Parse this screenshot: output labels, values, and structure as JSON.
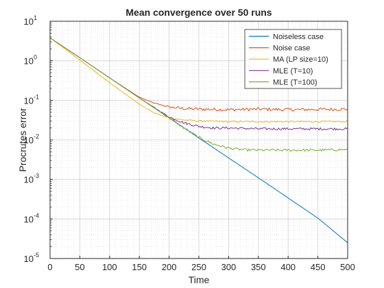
{
  "chart_data": {
    "type": "line",
    "title": "Mean convergence over 50 runs",
    "xlabel": "Time",
    "ylabel": "Procrutes error",
    "xlim": [
      0,
      500
    ],
    "ylim": [
      1e-05,
      10
    ],
    "yscale": "log",
    "grid": true,
    "minor_grid": true,
    "legend_position": "top-right",
    "x_ticks": [
      0,
      50,
      100,
      150,
      200,
      250,
      300,
      350,
      400,
      450,
      500
    ],
    "x_tick_labels": [
      "0",
      "50",
      "100",
      "150",
      "200",
      "250",
      "300",
      "350",
      "400",
      "450",
      "500"
    ],
    "y_ticks": [
      1e-05,
      0.0001,
      0.001,
      0.01,
      0.1,
      1,
      10
    ],
    "y_tick_labels": [
      {
        "base": "10",
        "exp": "-5"
      },
      {
        "base": "10",
        "exp": "-4"
      },
      {
        "base": "10",
        "exp": "-3"
      },
      {
        "base": "10",
        "exp": "-2"
      },
      {
        "base": "10",
        "exp": "-1"
      },
      {
        "base": "10",
        "exp": "0"
      },
      {
        "base": "10",
        "exp": "1"
      }
    ],
    "series": [
      {
        "name": "Noiseless case",
        "color": "#0072bd",
        "x": [
          0,
          50,
          100,
          150,
          200,
          250,
          300,
          350,
          400,
          450,
          500
        ],
        "y": [
          3.8,
          1.2,
          0.37,
          0.115,
          0.036,
          0.0112,
          0.0035,
          0.0011,
          0.00034,
          0.000105,
          2.5e-05
        ]
      },
      {
        "name": "Noise case",
        "color": "#d95319",
        "x": [
          0,
          50,
          100,
          150,
          175,
          200,
          225,
          250,
          300,
          350,
          400,
          450,
          500
        ],
        "y": [
          3.8,
          1.2,
          0.37,
          0.12,
          0.085,
          0.068,
          0.062,
          0.06,
          0.058,
          0.06,
          0.058,
          0.059,
          0.06
        ],
        "noise": 0.08
      },
      {
        "name": "MA (LP size=10)",
        "color": "#edb120",
        "x": [
          0,
          50,
          100,
          150,
          175,
          200,
          225,
          250,
          300,
          350,
          400,
          450,
          500
        ],
        "y": [
          3.8,
          1.05,
          0.28,
          0.08,
          0.048,
          0.036,
          0.032,
          0.03,
          0.029,
          0.029,
          0.029,
          0.029,
          0.029
        ],
        "noise": 0.04
      },
      {
        "name": "MLE (T=10)",
        "color": "#7e2f8e",
        "x": [
          0,
          50,
          100,
          150,
          200,
          225,
          250,
          275,
          300,
          350,
          400,
          450,
          500
        ],
        "y": [
          3.8,
          1.2,
          0.37,
          0.115,
          0.038,
          0.027,
          0.022,
          0.02,
          0.02,
          0.019,
          0.019,
          0.019,
          0.019
        ],
        "noise": 0.06
      },
      {
        "name": "MLE (T=100)",
        "color": "#77ac30",
        "x": [
          0,
          50,
          100,
          150,
          200,
          225,
          250,
          275,
          300,
          325,
          350,
          400,
          450,
          500
        ],
        "y": [
          3.8,
          1.2,
          0.37,
          0.115,
          0.036,
          0.02,
          0.0115,
          0.0078,
          0.0062,
          0.0056,
          0.0055,
          0.0055,
          0.0055,
          0.0057
        ],
        "noise": 0.06
      }
    ]
  }
}
